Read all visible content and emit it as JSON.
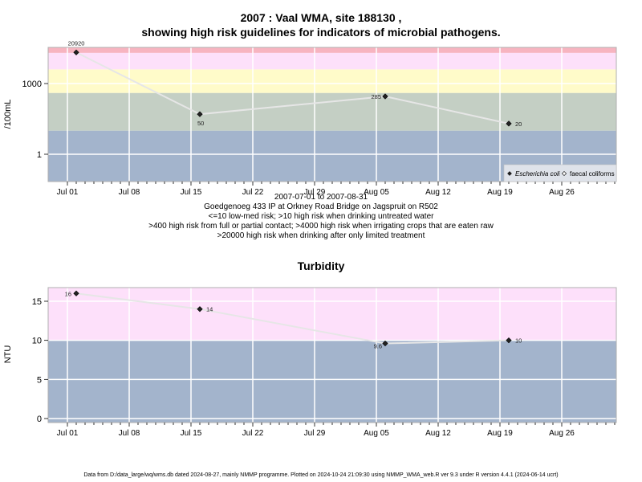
{
  "charts": {
    "micro": {
      "title_line1": "2007 : Vaal WMA, site 188130 ,",
      "title_line2": "showing high risk guidelines for indicators of microbial pathogens."
    },
    "turbidity": {
      "title": "Turbidity"
    }
  },
  "notes": {
    "date_range": "2007-07-01 to 2007-08-31",
    "site": "Goedgenoeg 433 IP at Orkney Road Bridge on Jagspruit on R502",
    "line1": "<=10 low-med risk; >10 high risk when drinking untreated water",
    "line2": ">400 high risk from full or partial contact; >4000 high risk when irrigating crops that are eaten raw",
    "line3": ">20000 high risk when drinking after only limited treatment"
  },
  "footer": "Data from D:/data_large/wq/wms.db dated 2024-08-27, mainly NMMP programme. Plotted on 2024-10-24 21:09:30 using NMMP_WMA_web.R ver 9.3 under R version 4.4.1 (2024-06-14 ucrt)",
  "chart_data": [
    {
      "type": "scatter",
      "title": "2007 : Vaal WMA, site 188130 , showing high risk guidelines for indicators of microbial pathogens.",
      "ylabel": "/100mL",
      "xlabel": "2007-07-01 to 2007-08-31",
      "y_scale": "log10",
      "x_ticks": [
        "Jul 01",
        "Jul 08",
        "Jul 15",
        "Jul 22",
        "Jul 29",
        "Aug 05",
        "Aug 12",
        "Aug 19",
        "Aug 26"
      ],
      "y_ticks": [
        "1",
        "1000"
      ],
      "grid": true,
      "legend": {
        "position": "bottom-right",
        "entries": [
          {
            "label": "Escherichia coli",
            "marker": "filled-diamond"
          },
          {
            "label": "faecal coliforms",
            "marker": "open-diamond"
          }
        ]
      },
      "bands": [
        {
          "from": "",
          "to": 10,
          "color": "#a3b4cc"
        },
        {
          "from": 10,
          "to": 400,
          "color": "#c4cfc4"
        },
        {
          "from": 400,
          "to": 4000,
          "color": "#fffbc9"
        },
        {
          "from": 4000,
          "to": 20000,
          "color": "#fde0fa"
        },
        {
          "from": 20000,
          "to": "",
          "color": "#f7b4c0"
        }
      ],
      "series": [
        {
          "name": "Escherichia coli",
          "x": [
            "2007-07-02",
            "2007-07-16",
            "2007-08-06",
            "2007-08-20"
          ],
          "y": [
            20920,
            50,
            285,
            20
          ],
          "labels": [
            "20920",
            "50",
            "285",
            "20"
          ]
        }
      ]
    },
    {
      "type": "scatter",
      "title": "Turbidity",
      "ylabel": "NTU",
      "x_ticks": [
        "Jul 01",
        "Jul 08",
        "Jul 15",
        "Jul 22",
        "Jul 29",
        "Aug 05",
        "Aug 12",
        "Aug 19",
        "Aug 26"
      ],
      "y_ticks": [
        0,
        5,
        10,
        15
      ],
      "grid": true,
      "bands": [
        {
          "from": "",
          "to": 10,
          "color": "#a3b4cc"
        },
        {
          "from": 10,
          "to": "",
          "color": "#fde0fa"
        }
      ],
      "series": [
        {
          "x": [
            "2007-07-02",
            "2007-07-16",
            "2007-08-06",
            "2007-08-20"
          ],
          "y": [
            16,
            14,
            9.6,
            10
          ],
          "labels": [
            "16",
            "14",
            "9.6",
            "10"
          ]
        }
      ]
    }
  ]
}
